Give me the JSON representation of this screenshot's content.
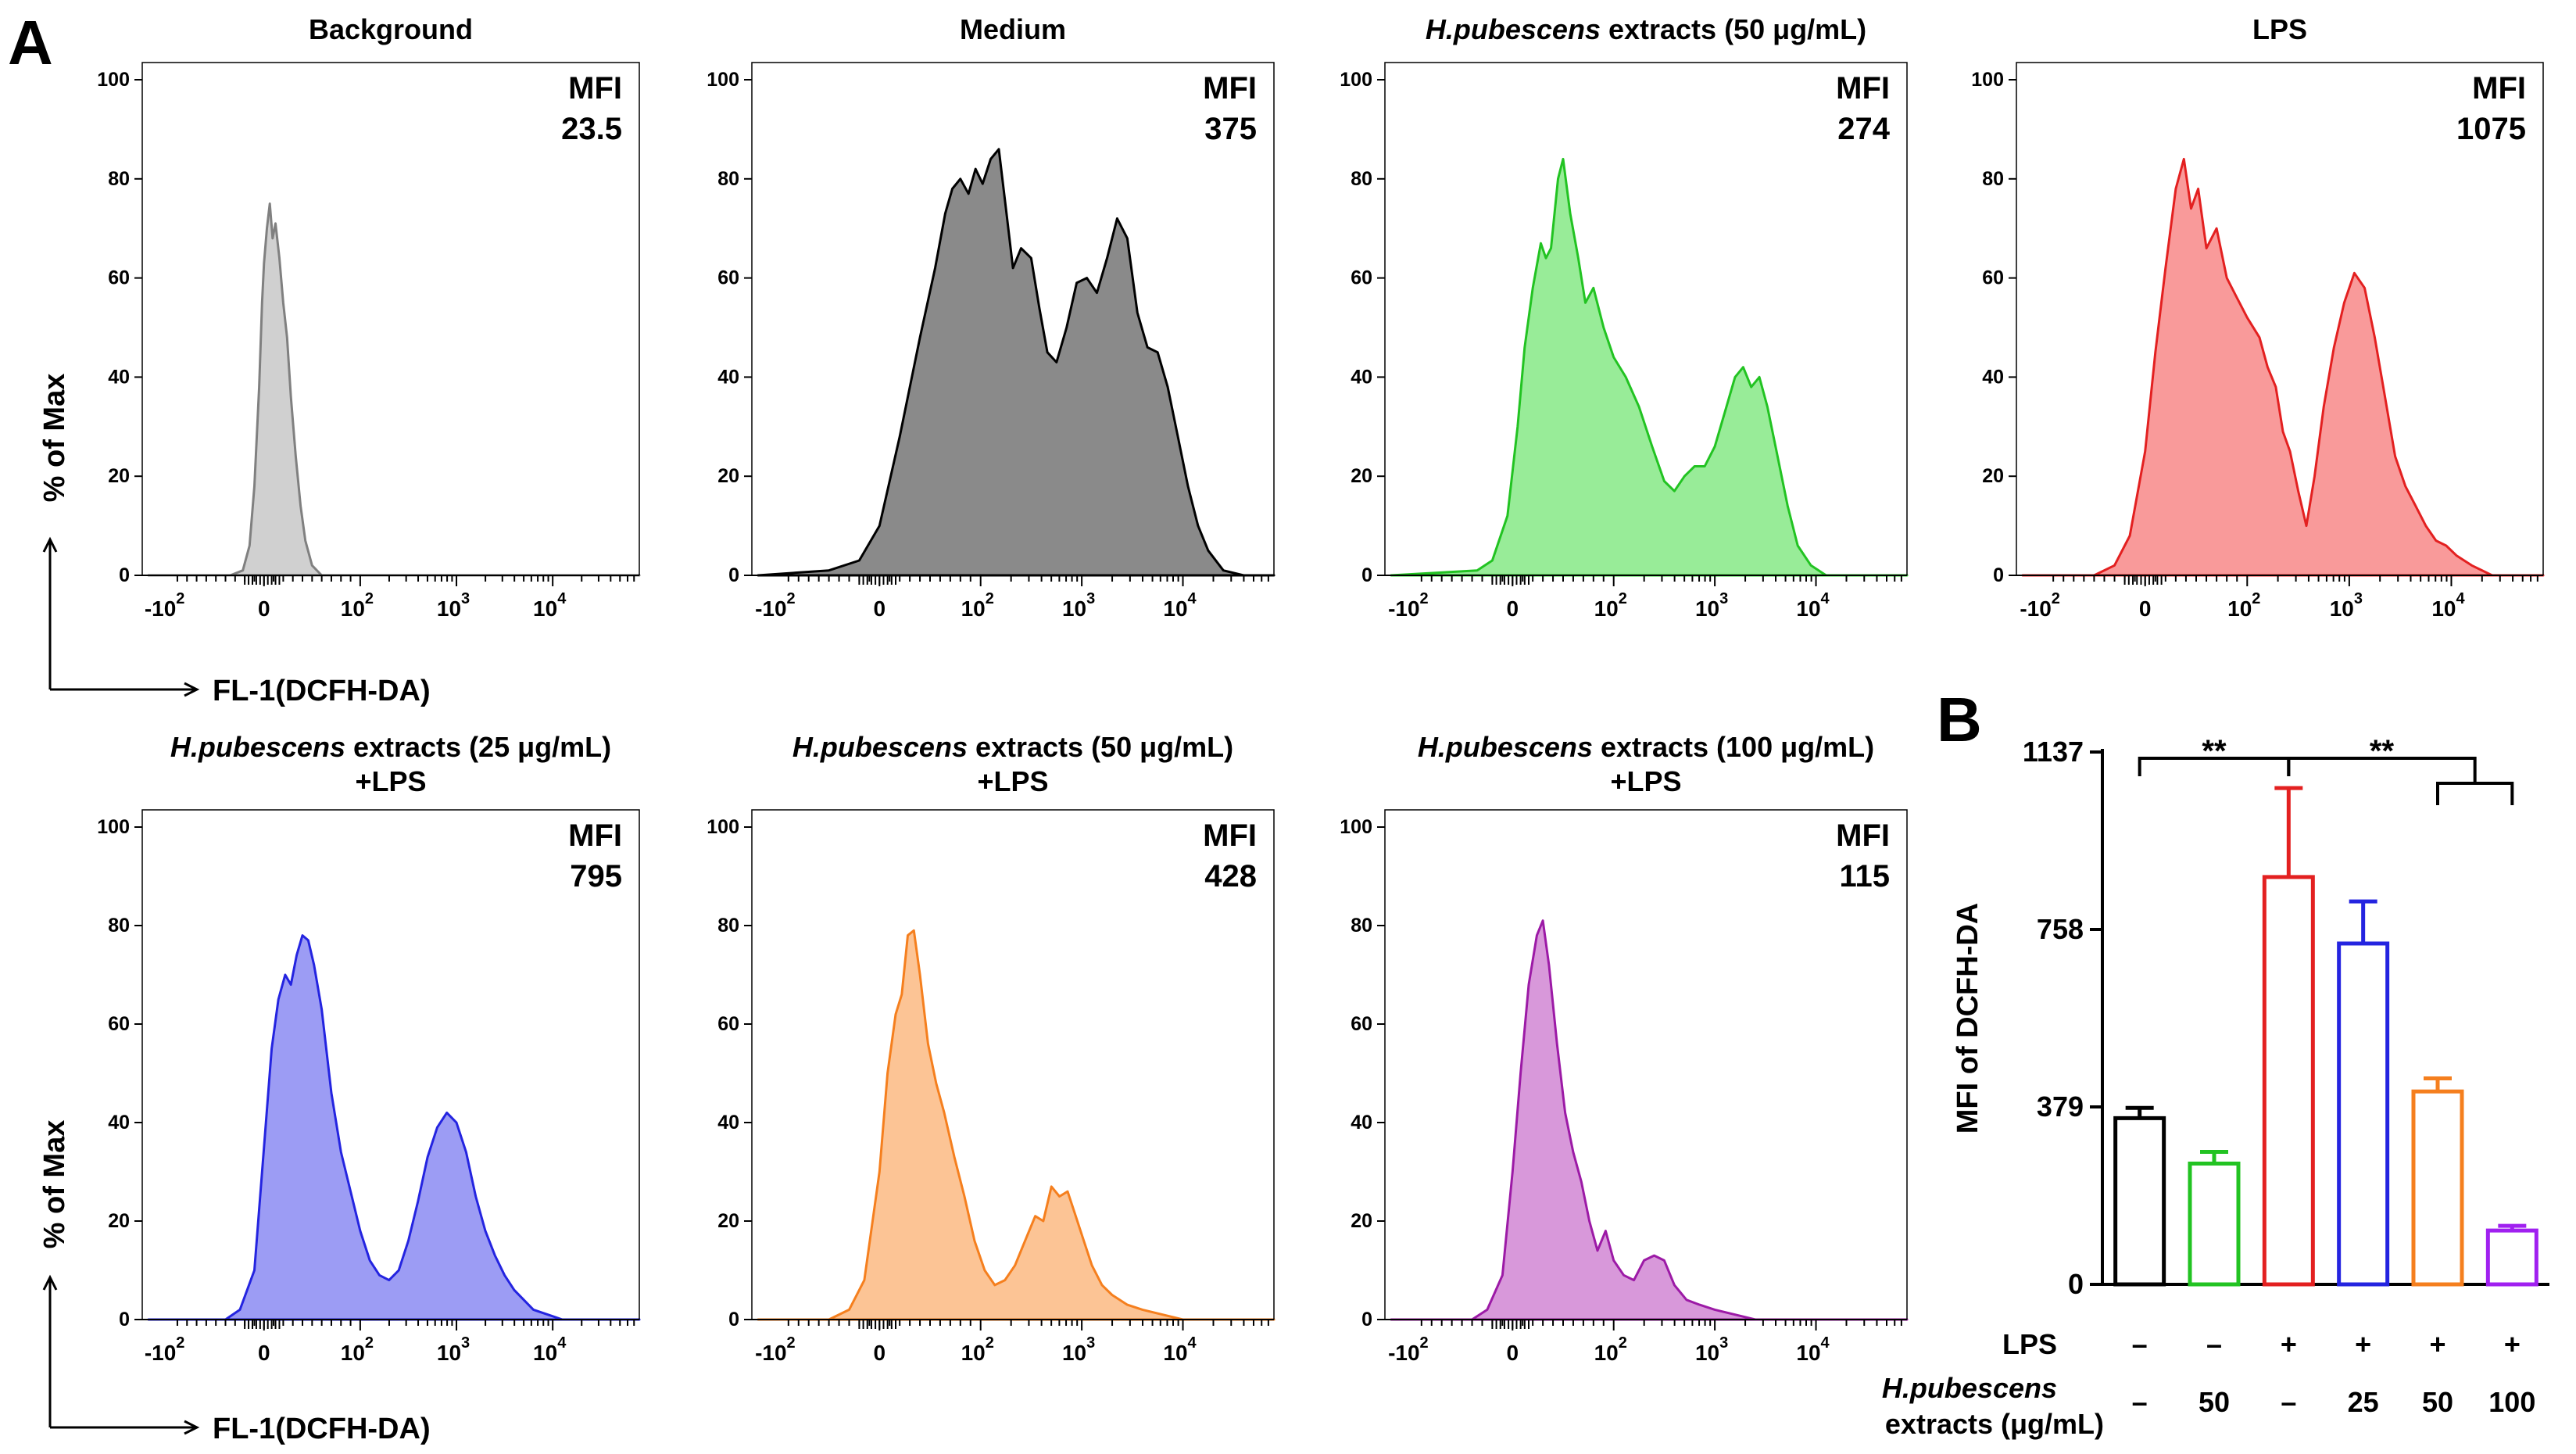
{
  "panel_letters": {
    "a": "A",
    "b": "B"
  },
  "histograms": {
    "y_axis_label": "% of Max",
    "x_axis_label": "FL-1(DCFH-DA)",
    "mfi_label": "MFI",
    "y_ticks": [
      "0",
      "20",
      "40",
      "60",
      "80",
      "100"
    ],
    "x_ticks": [
      {
        "base": "-10",
        "exp": "2"
      },
      {
        "base": "0",
        "exp": ""
      },
      {
        "base": "10",
        "exp": "2"
      },
      {
        "base": "10",
        "exp": "3"
      },
      {
        "base": "10",
        "exp": "4"
      }
    ]
  },
  "chart_data": [
    {
      "type": "area",
      "title": "Background",
      "mfi": "23.5",
      "color": "#808080",
      "fill": "#d0d0d0",
      "xlim": [
        -1.2,
        3.9
      ],
      "ylim": [
        0,
        100
      ],
      "points": [
        [
          -1.2,
          0
        ],
        [
          -0.35,
          0
        ],
        [
          -0.22,
          1
        ],
        [
          -0.15,
          6
        ],
        [
          -0.1,
          18
        ],
        [
          -0.05,
          38
        ],
        [
          -0.02,
          55
        ],
        [
          0.0,
          63
        ],
        [
          0.03,
          70
        ],
        [
          0.06,
          75
        ],
        [
          0.09,
          68
        ],
        [
          0.12,
          71
        ],
        [
          0.16,
          64
        ],
        [
          0.2,
          55
        ],
        [
          0.24,
          48
        ],
        [
          0.28,
          36
        ],
        [
          0.33,
          24
        ],
        [
          0.38,
          14
        ],
        [
          0.43,
          7
        ],
        [
          0.5,
          2
        ],
        [
          0.6,
          0
        ],
        [
          3.9,
          0
        ]
      ]
    },
    {
      "type": "area",
      "title": "Medium",
      "mfi": "375",
      "color": "#000000",
      "fill": "#8a8a8a",
      "xlim": [
        -1.2,
        3.9
      ],
      "ylim": [
        0,
        100
      ],
      "points": [
        [
          -1.2,
          0
        ],
        [
          -0.5,
          1
        ],
        [
          -0.2,
          3
        ],
        [
          0.0,
          10
        ],
        [
          0.2,
          28
        ],
        [
          0.4,
          48
        ],
        [
          0.55,
          62
        ],
        [
          0.65,
          73
        ],
        [
          0.72,
          78
        ],
        [
          0.8,
          80
        ],
        [
          0.88,
          77
        ],
        [
          0.95,
          82
        ],
        [
          1.02,
          79
        ],
        [
          1.1,
          84
        ],
        [
          1.18,
          86
        ],
        [
          1.25,
          74
        ],
        [
          1.32,
          62
        ],
        [
          1.4,
          66
        ],
        [
          1.5,
          64
        ],
        [
          1.58,
          54
        ],
        [
          1.66,
          45
        ],
        [
          1.75,
          43
        ],
        [
          1.85,
          50
        ],
        [
          1.95,
          59
        ],
        [
          2.05,
          60
        ],
        [
          2.15,
          57
        ],
        [
          2.25,
          64
        ],
        [
          2.35,
          72
        ],
        [
          2.45,
          68
        ],
        [
          2.55,
          53
        ],
        [
          2.65,
          46
        ],
        [
          2.75,
          45
        ],
        [
          2.85,
          38
        ],
        [
          2.95,
          28
        ],
        [
          3.05,
          18
        ],
        [
          3.15,
          10
        ],
        [
          3.25,
          5
        ],
        [
          3.4,
          1
        ],
        [
          3.6,
          0
        ],
        [
          3.9,
          0
        ]
      ]
    },
    {
      "type": "area",
      "title": "H.pubescens extracts (50 μg/mL)",
      "title_italic": "H.pubescens",
      "title_rest": " extracts (50 μg/mL)",
      "mfi": "274",
      "color": "#22c322",
      "fill": "#98ec98",
      "xlim": [
        -1.2,
        3.9
      ],
      "ylim": [
        0,
        100
      ],
      "points": [
        [
          -1.2,
          0
        ],
        [
          -0.35,
          1
        ],
        [
          -0.2,
          3
        ],
        [
          -0.05,
          12
        ],
        [
          0.05,
          30
        ],
        [
          0.12,
          46
        ],
        [
          0.2,
          58
        ],
        [
          0.28,
          67
        ],
        [
          0.33,
          64
        ],
        [
          0.38,
          66
        ],
        [
          0.45,
          80
        ],
        [
          0.5,
          84
        ],
        [
          0.57,
          73
        ],
        [
          0.65,
          64
        ],
        [
          0.72,
          55
        ],
        [
          0.8,
          58
        ],
        [
          0.9,
          50
        ],
        [
          1.0,
          44
        ],
        [
          1.12,
          40
        ],
        [
          1.25,
          34
        ],
        [
          1.38,
          26
        ],
        [
          1.5,
          19
        ],
        [
          1.6,
          17
        ],
        [
          1.7,
          20
        ],
        [
          1.8,
          22
        ],
        [
          1.9,
          22
        ],
        [
          2.0,
          26
        ],
        [
          2.1,
          33
        ],
        [
          2.2,
          40
        ],
        [
          2.28,
          42
        ],
        [
          2.36,
          38
        ],
        [
          2.44,
          40
        ],
        [
          2.52,
          34
        ],
        [
          2.62,
          24
        ],
        [
          2.72,
          14
        ],
        [
          2.82,
          6
        ],
        [
          2.95,
          2
        ],
        [
          3.1,
          0
        ],
        [
          3.9,
          0
        ]
      ]
    },
    {
      "type": "area",
      "title": "LPS",
      "mfi": "1075",
      "color": "#e32020",
      "fill": "#f99a9a",
      "xlim": [
        -1.2,
        3.9
      ],
      "ylim": [
        0,
        100
      ],
      "points": [
        [
          -1.2,
          0
        ],
        [
          -0.5,
          0
        ],
        [
          -0.3,
          2
        ],
        [
          -0.15,
          8
        ],
        [
          0.0,
          25
        ],
        [
          0.1,
          45
        ],
        [
          0.2,
          62
        ],
        [
          0.3,
          78
        ],
        [
          0.38,
          84
        ],
        [
          0.45,
          74
        ],
        [
          0.52,
          78
        ],
        [
          0.6,
          66
        ],
        [
          0.7,
          70
        ],
        [
          0.8,
          60
        ],
        [
          0.9,
          56
        ],
        [
          1.0,
          52
        ],
        [
          1.12,
          48
        ],
        [
          1.2,
          42
        ],
        [
          1.28,
          38
        ],
        [
          1.35,
          29
        ],
        [
          1.42,
          25
        ],
        [
          1.5,
          17
        ],
        [
          1.58,
          10
        ],
        [
          1.66,
          20
        ],
        [
          1.75,
          34
        ],
        [
          1.85,
          46
        ],
        [
          1.95,
          55
        ],
        [
          2.05,
          61
        ],
        [
          2.15,
          58
        ],
        [
          2.25,
          48
        ],
        [
          2.35,
          36
        ],
        [
          2.45,
          24
        ],
        [
          2.55,
          18
        ],
        [
          2.65,
          14
        ],
        [
          2.75,
          10
        ],
        [
          2.85,
          7
        ],
        [
          2.95,
          6
        ],
        [
          3.05,
          4
        ],
        [
          3.2,
          2
        ],
        [
          3.4,
          0
        ],
        [
          3.9,
          0
        ]
      ]
    },
    {
      "type": "area",
      "title": "H.pubescens extracts (25 μg/mL) +LPS",
      "title_italic": "H.pubescens",
      "title_rest": " extracts (25 μg/mL)",
      "title_line2": "+LPS",
      "mfi": "795",
      "color": "#2424e0",
      "fill": "#9c9cf4",
      "xlim": [
        -1.2,
        3.9
      ],
      "ylim": [
        0,
        100
      ],
      "points": [
        [
          -1.2,
          0
        ],
        [
          -0.4,
          0
        ],
        [
          -0.25,
          2
        ],
        [
          -0.1,
          10
        ],
        [
          0.0,
          35
        ],
        [
          0.08,
          55
        ],
        [
          0.15,
          65
        ],
        [
          0.22,
          70
        ],
        [
          0.28,
          68
        ],
        [
          0.34,
          74
        ],
        [
          0.4,
          78
        ],
        [
          0.46,
          77
        ],
        [
          0.52,
          72
        ],
        [
          0.6,
          63
        ],
        [
          0.7,
          46
        ],
        [
          0.8,
          34
        ],
        [
          0.9,
          26
        ],
        [
          1.0,
          18
        ],
        [
          1.1,
          12
        ],
        [
          1.2,
          9
        ],
        [
          1.3,
          8
        ],
        [
          1.4,
          10
        ],
        [
          1.5,
          16
        ],
        [
          1.6,
          24
        ],
        [
          1.7,
          33
        ],
        [
          1.8,
          39
        ],
        [
          1.9,
          42
        ],
        [
          2.0,
          40
        ],
        [
          2.1,
          34
        ],
        [
          2.2,
          25
        ],
        [
          2.3,
          18
        ],
        [
          2.4,
          13
        ],
        [
          2.5,
          9
        ],
        [
          2.6,
          6
        ],
        [
          2.7,
          4
        ],
        [
          2.8,
          2
        ],
        [
          2.95,
          1
        ],
        [
          3.1,
          0
        ],
        [
          3.9,
          0
        ]
      ]
    },
    {
      "type": "area",
      "title": "H.pubescens extracts (50 μg/mL) +LPS",
      "title_italic": "H.pubescens",
      "title_rest": " extracts (50 μg/mL)",
      "title_line2": "+LPS",
      "mfi": "428",
      "color": "#f57f1e",
      "fill": "#fcc495",
      "xlim": [
        -1.2,
        3.9
      ],
      "ylim": [
        0,
        100
      ],
      "points": [
        [
          -1.2,
          0
        ],
        [
          -0.5,
          0
        ],
        [
          -0.3,
          2
        ],
        [
          -0.15,
          8
        ],
        [
          0.0,
          30
        ],
        [
          0.08,
          50
        ],
        [
          0.16,
          62
        ],
        [
          0.22,
          66
        ],
        [
          0.28,
          78
        ],
        [
          0.34,
          79
        ],
        [
          0.4,
          70
        ],
        [
          0.48,
          56
        ],
        [
          0.56,
          48
        ],
        [
          0.64,
          42
        ],
        [
          0.74,
          33
        ],
        [
          0.84,
          25
        ],
        [
          0.94,
          16
        ],
        [
          1.04,
          10
        ],
        [
          1.14,
          7
        ],
        [
          1.24,
          8
        ],
        [
          1.34,
          11
        ],
        [
          1.44,
          16
        ],
        [
          1.54,
          21
        ],
        [
          1.62,
          20
        ],
        [
          1.7,
          27
        ],
        [
          1.78,
          25
        ],
        [
          1.86,
          26
        ],
        [
          1.94,
          21
        ],
        [
          2.02,
          16
        ],
        [
          2.1,
          11
        ],
        [
          2.2,
          7
        ],
        [
          2.3,
          5
        ],
        [
          2.45,
          3
        ],
        [
          2.6,
          2
        ],
        [
          2.8,
          1
        ],
        [
          3.0,
          0
        ],
        [
          3.9,
          0
        ]
      ]
    },
    {
      "type": "area",
      "title": "H.pubescens extracts (100 μg/mL) +LPS",
      "title_italic": "H.pubescens",
      "title_rest": " extracts (100 μg/mL)",
      "title_line2": "+LPS",
      "mfi": "115",
      "color": "#9c1aa6",
      "fill": "#d898da",
      "xlim": [
        -1.2,
        3.9
      ],
      "ylim": [
        0,
        100
      ],
      "points": [
        [
          -1.2,
          0
        ],
        [
          -0.4,
          0
        ],
        [
          -0.25,
          2
        ],
        [
          -0.1,
          9
        ],
        [
          0.0,
          30
        ],
        [
          0.08,
          50
        ],
        [
          0.16,
          68
        ],
        [
          0.24,
          78
        ],
        [
          0.3,
          81
        ],
        [
          0.36,
          72
        ],
        [
          0.44,
          56
        ],
        [
          0.52,
          42
        ],
        [
          0.6,
          34
        ],
        [
          0.68,
          28
        ],
        [
          0.76,
          20
        ],
        [
          0.84,
          14
        ],
        [
          0.92,
          18
        ],
        [
          1.0,
          12
        ],
        [
          1.1,
          9
        ],
        [
          1.2,
          8
        ],
        [
          1.3,
          12
        ],
        [
          1.4,
          13
        ],
        [
          1.5,
          12
        ],
        [
          1.6,
          7
        ],
        [
          1.72,
          4
        ],
        [
          1.85,
          3
        ],
        [
          2.0,
          2
        ],
        [
          2.2,
          1
        ],
        [
          2.4,
          0
        ],
        [
          3.9,
          0
        ]
      ]
    },
    {
      "type": "bar",
      "ylabel": "MFI of DCFH-DA",
      "ylim": [
        0,
        1137
      ],
      "yticks": [
        "0",
        "379",
        "758",
        "1137"
      ],
      "ytick_values": [
        0,
        379,
        758,
        1137
      ],
      "conditions": {
        "row1_label": "LPS",
        "row2_label_italic": "H.pubescens",
        "row2_label_rest": "extracts (μg/mL)",
        "lps": [
          "–",
          "–",
          "+",
          "+",
          "+",
          "+"
        ],
        "extract": [
          "–",
          "50",
          "–",
          "25",
          "50",
          "100"
        ]
      },
      "bars": [
        {
          "value": 355,
          "error": 22,
          "color": "#000000"
        },
        {
          "value": 258,
          "error": 25,
          "color": "#22c322"
        },
        {
          "value": 870,
          "error": 190,
          "color": "#e32020"
        },
        {
          "value": 728,
          "error": 90,
          "color": "#2424e0"
        },
        {
          "value": 412,
          "error": 28,
          "color": "#f57f1e"
        },
        {
          "value": 115,
          "error": 10,
          "color": "#a020f0"
        }
      ],
      "significance": [
        "**",
        "**"
      ]
    }
  ]
}
